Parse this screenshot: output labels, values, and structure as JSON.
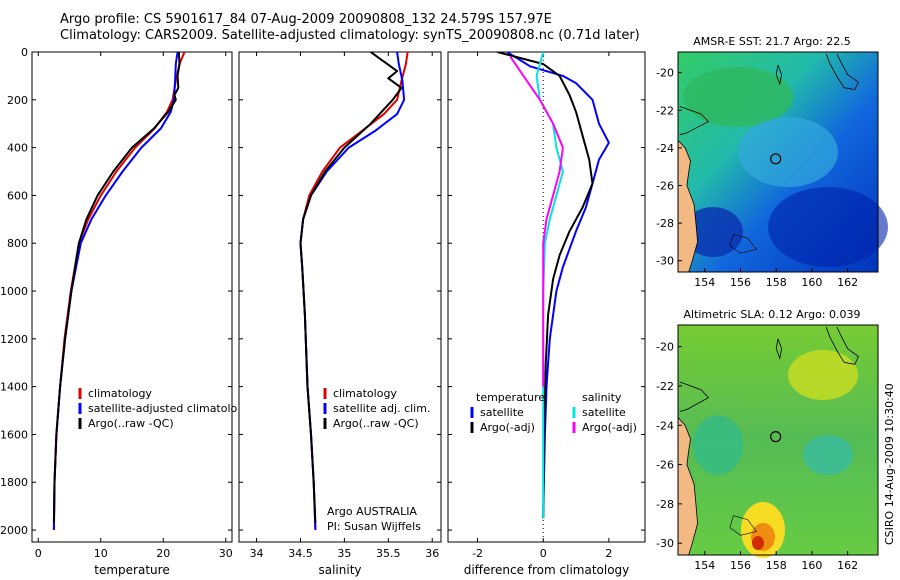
{
  "figure": {
    "title_line1": "Argo profile: CS 5901617_84 07-Aug-2009 20090808_132 24.579S 157.97E",
    "title_line2": "Climatology: CARS2009. Satellite-adjusted climatology: synTS_20090808.nc (0.71d later)",
    "side_label": "CSIRO 14-Aug-2009 10:30:40",
    "credit_line1": "Argo AUSTRALIA",
    "credit_line2": "PI: Susan Wijffels"
  },
  "colors": {
    "climatology": "#dd0000",
    "satellite": "#0000ff",
    "argo": "#000000",
    "cyan": "#00e5e5",
    "magenta": "#ff00ff",
    "land": "#f2b983"
  },
  "chart_data": [
    {
      "type": "line",
      "xlabel": "temperature",
      "ylabel": "",
      "xlim": [
        -1,
        31
      ],
      "ylim": [
        2050,
        0
      ],
      "y_inverted": true,
      "xticks": [
        0,
        10,
        20,
        30
      ],
      "yticks": [
        0,
        200,
        400,
        600,
        800,
        1000,
        1200,
        1400,
        1600,
        1800,
        2000
      ],
      "legend": [
        "climatology",
        "satellite-adjusted climatolo",
        "Argo(..raw -QC)"
      ],
      "series": [
        {
          "name": "climatology",
          "color": "#dd0000",
          "x": [
            23.4,
            22.6,
            22.0,
            21.5,
            20.6,
            18.6,
            15.5,
            12.5,
            10.0,
            8.0,
            6.5,
            5.2,
            4.2,
            3.5,
            2.9,
            2.6,
            2.5
          ],
          "y": [
            0,
            50,
            120,
            200,
            250,
            320,
            400,
            500,
            600,
            700,
            800,
            1000,
            1200,
            1400,
            1600,
            1800,
            2000
          ]
        },
        {
          "name": "satellite-adjusted climatology",
          "color": "#0000ff",
          "x": [
            22.3,
            22.0,
            21.9,
            21.7,
            21.2,
            19.6,
            16.5,
            13.5,
            10.8,
            8.5,
            6.8,
            5.3,
            4.3,
            3.5,
            2.9,
            2.6,
            2.5
          ],
          "y": [
            0,
            50,
            120,
            200,
            250,
            320,
            400,
            500,
            600,
            700,
            800,
            1000,
            1200,
            1400,
            1600,
            1800,
            2000
          ]
        },
        {
          "name": "Argo(..raw -QC)",
          "color": "#000000",
          "x": [
            22.5,
            22.6,
            22.3,
            22.4,
            21.8,
            22.0,
            20.8,
            18.5,
            15.0,
            12.0,
            9.5,
            7.7,
            6.5,
            5.3,
            4.3,
            3.5,
            2.9,
            2.6,
            2.5
          ],
          "y": [
            0,
            50,
            100,
            150,
            180,
            200,
            250,
            320,
            400,
            500,
            600,
            700,
            800,
            1000,
            1200,
            1400,
            1600,
            1800,
            1970
          ]
        }
      ]
    },
    {
      "type": "line",
      "xlabel": "salinity",
      "ylabel": "",
      "xlim": [
        33.8,
        36.1
      ],
      "ylim": [
        2050,
        0
      ],
      "y_inverted": true,
      "xticks": [
        34,
        34.5,
        35,
        35.5,
        36
      ],
      "legend": [
        "climatology",
        "satellite adj. clim.",
        "Argo(..raw -QC)"
      ],
      "series": [
        {
          "name": "climatology",
          "color": "#dd0000",
          "x": [
            35.72,
            35.7,
            35.65,
            35.6,
            35.45,
            35.2,
            34.95,
            34.75,
            34.6,
            34.53,
            34.5,
            34.52,
            34.55,
            34.58,
            34.62,
            34.65,
            34.67
          ],
          "y": [
            0,
            50,
            120,
            200,
            260,
            330,
            400,
            500,
            600,
            700,
            800,
            900,
            1100,
            1400,
            1600,
            1800,
            2000
          ]
        },
        {
          "name": "satellite adj. clim.",
          "color": "#0000ff",
          "x": [
            35.6,
            35.62,
            35.66,
            35.68,
            35.6,
            35.35,
            35.05,
            34.8,
            34.62,
            34.53,
            34.5,
            34.52,
            34.55,
            34.58,
            34.62,
            34.65,
            34.67
          ],
          "y": [
            0,
            50,
            120,
            200,
            260,
            330,
            400,
            500,
            600,
            700,
            800,
            900,
            1100,
            1400,
            1600,
            1800,
            2000
          ]
        },
        {
          "name": "Argo(..raw -QC)",
          "color": "#000000",
          "x": [
            35.3,
            35.45,
            35.6,
            35.5,
            35.65,
            35.55,
            35.3,
            35.0,
            34.78,
            34.62,
            34.53,
            34.5,
            34.52,
            34.55,
            34.58,
            34.62,
            34.65,
            34.67
          ],
          "y": [
            0,
            40,
            80,
            110,
            150,
            200,
            300,
            400,
            500,
            600,
            700,
            800,
            900,
            1100,
            1400,
            1600,
            1800,
            1970
          ]
        }
      ]
    },
    {
      "type": "line",
      "xlabel": "difference from climatology",
      "ylabel": "",
      "xlim": [
        -2.9,
        3.1
      ],
      "ylim": [
        2050,
        0
      ],
      "y_inverted": true,
      "xticks": [
        -2,
        0,
        2
      ],
      "legend_left_title": "temperature",
      "legend_right_title": "salinity",
      "legend": [
        "satellite",
        "Argo(-adj)",
        "satellite",
        "Argo(-adj)"
      ],
      "series": [
        {
          "name": "satellite",
          "group": "temperature",
          "color": "#0000ff",
          "x": [
            -1.1,
            -0.4,
            0.6,
            1.0,
            1.5,
            1.7,
            2.0,
            1.7,
            1.5,
            1.3,
            1.0,
            0.6,
            0.4,
            0.2,
            0.1,
            0.05,
            0.02,
            0.0
          ],
          "y": [
            0,
            60,
            100,
            130,
            200,
            300,
            380,
            450,
            550,
            650,
            750,
            900,
            1000,
            1200,
            1400,
            1600,
            1800,
            1950
          ]
        },
        {
          "name": "Argo(-adj)",
          "group": "temperature",
          "color": "#000000",
          "x": [
            -1.4,
            0.0,
            0.5,
            0.8,
            1.0,
            1.2,
            1.4,
            1.5,
            1.2,
            0.8,
            0.5,
            0.3,
            0.15,
            0.08,
            0.04,
            0.02,
            0.0
          ],
          "y": [
            0,
            50,
            100,
            180,
            250,
            350,
            450,
            550,
            650,
            750,
            850,
            950,
            1100,
            1300,
            1500,
            1700,
            1950
          ]
        },
        {
          "name": "satellite",
          "group": "salinity",
          "color": "#00e5e5",
          "x": [
            0.0,
            -0.2,
            -0.1,
            0.3,
            0.4,
            0.6,
            0.4,
            0.2,
            0.05,
            0.0,
            0.0,
            0.0
          ],
          "y": [
            0,
            100,
            200,
            300,
            400,
            500,
            600,
            700,
            800,
            1000,
            1500,
            1950
          ]
        },
        {
          "name": "Argo(-adj)",
          "group": "salinity",
          "color": "#ff00ff",
          "x": [
            -1.0,
            -0.6,
            -0.1,
            0.3,
            0.6,
            0.5,
            0.3,
            0.1,
            0.0,
            0.0,
            0.0
          ],
          "y": [
            20,
            100,
            200,
            300,
            400,
            500,
            600,
            700,
            800,
            1000,
            1400
          ]
        }
      ]
    },
    {
      "type": "heatmap",
      "title": "AMSR-E SST: 21.7 Argo: 22.5",
      "xlim": [
        152.5,
        163.7
      ],
      "ylim": [
        -30.6,
        -18.9
      ],
      "xticks": [
        154,
        156,
        158,
        160,
        162
      ],
      "yticks": [
        -20,
        -22,
        -24,
        -26,
        -28,
        -30
      ],
      "argo_position": [
        157.97,
        -24.58
      ]
    },
    {
      "type": "heatmap",
      "title": "Altimetric SLA: 0.12 Argo: 0.039",
      "xlim": [
        152.5,
        163.7
      ],
      "ylim": [
        -30.6,
        -18.9
      ],
      "xticks": [
        154,
        156,
        158,
        160,
        162
      ],
      "yticks": [
        -20,
        -22,
        -24,
        -26,
        -28,
        -30
      ],
      "argo_position": [
        157.97,
        -24.58
      ]
    }
  ]
}
